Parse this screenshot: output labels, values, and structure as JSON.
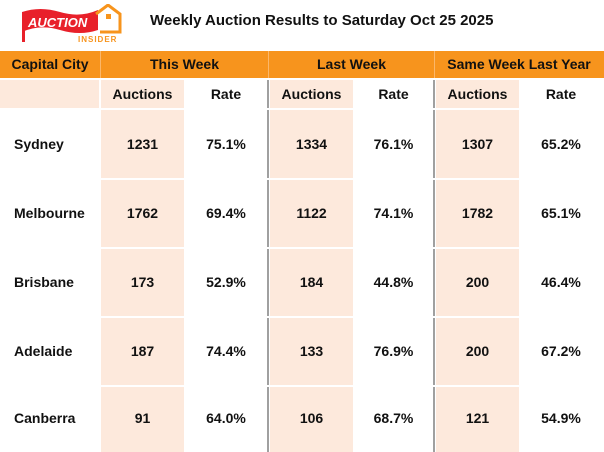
{
  "logo": {
    "text_main": "AUCTION",
    "text_sub": "INSIDER"
  },
  "title": "Weekly Auction Results to Saturday Oct 25 2025",
  "headers": [
    "Capital City",
    "This Week",
    "Last Week",
    "Same Week Last Year"
  ],
  "subheaders": [
    "Auctions",
    "Rate",
    "Auctions",
    "Rate",
    "Auctions",
    "Rate"
  ],
  "rows": [
    {
      "city": "Sydney",
      "values": [
        "1231",
        "75.1%",
        "1334",
        "76.1%",
        "1307",
        "65.2%"
      ]
    },
    {
      "city": "Melbourne",
      "values": [
        "1762",
        "69.4%",
        "1122",
        "74.1%",
        "1782",
        "65.1%"
      ]
    },
    {
      "city": "Brisbane",
      "values": [
        "173",
        "52.9%",
        "184",
        "44.8%",
        "200",
        "46.4%"
      ]
    },
    {
      "city": "Adelaide",
      "values": [
        "187",
        "74.4%",
        "133",
        "76.9%",
        "200",
        "67.2%"
      ]
    },
    {
      "city": "Canberra",
      "values": [
        "91",
        "64.0%",
        "106",
        "68.7%",
        "121",
        "54.9%"
      ]
    }
  ],
  "colors": {
    "header": "#f7941d",
    "peach": "#fde9dc",
    "logo_red": "#e8202a"
  }
}
